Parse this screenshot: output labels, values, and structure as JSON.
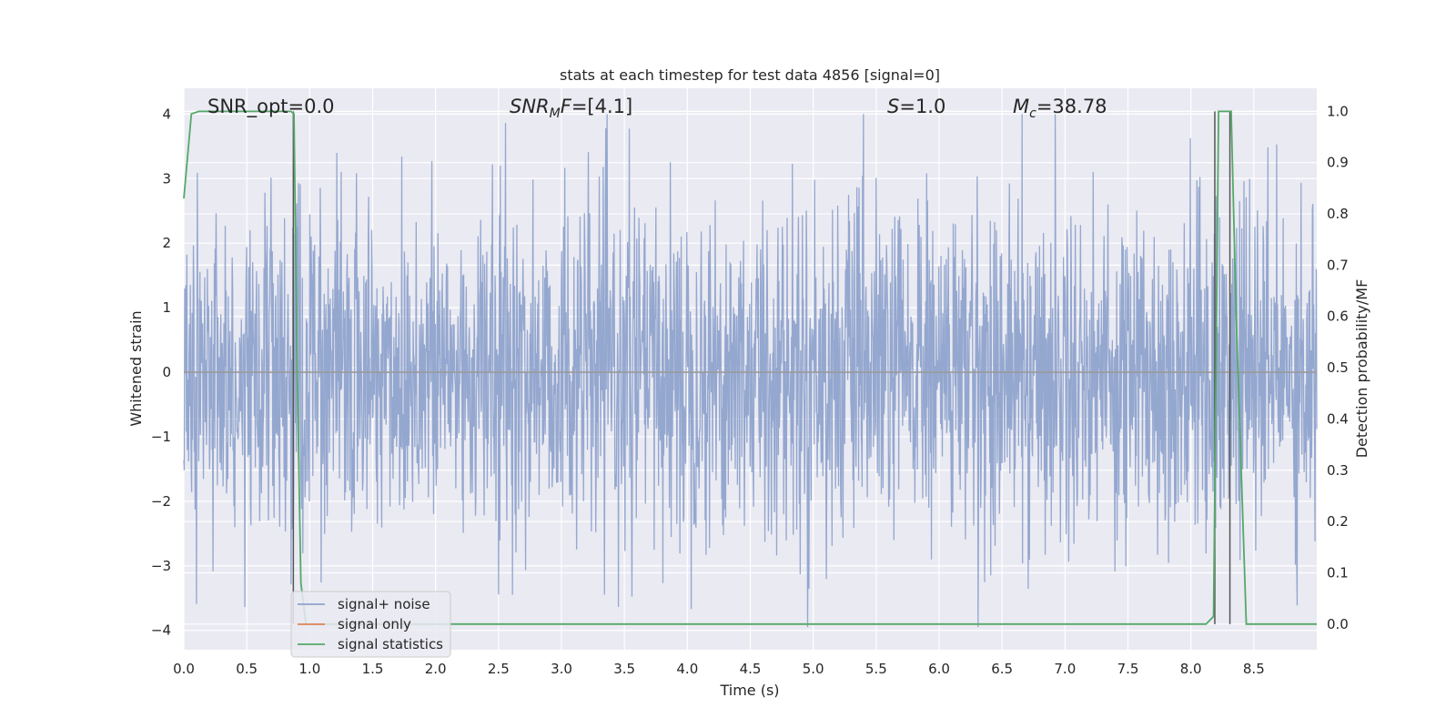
{
  "chart_data": {
    "type": "line",
    "title": "stats at each timestep for test data 4856 [signal=0]",
    "xlabel": "Time (s)",
    "ylabel": "Whitened strain",
    "ylabel_right": "Detection probability/MF",
    "xlim": [
      0.0,
      9.0
    ],
    "ylim": [
      -4.3,
      4.4
    ],
    "ylim_right": [
      -0.05,
      1.045
    ],
    "x_ticks": [
      "0.0",
      "0.5",
      "1.0",
      "1.5",
      "2.0",
      "2.5",
      "3.0",
      "3.5",
      "4.0",
      "4.5",
      "5.0",
      "5.5",
      "6.0",
      "6.5",
      "7.0",
      "7.5",
      "8.0",
      "8.5"
    ],
    "y_ticks": [
      "4",
      "3",
      "2",
      "1",
      "0",
      "−1",
      "−2",
      "−3",
      "−4"
    ],
    "y_ticks_right": [
      "1.0",
      "0.9",
      "0.8",
      "0.7",
      "0.6",
      "0.5",
      "0.4",
      "0.3",
      "0.2",
      "0.1",
      "0.0"
    ],
    "grid": true,
    "legend_position": "lower-left",
    "annotations": [
      {
        "id": "snr_opt",
        "parts": [
          {
            "t": "SNR_opt=0.0",
            "style": "normal"
          }
        ]
      },
      {
        "id": "snr_mf",
        "parts": [
          {
            "t": "SNR",
            "style": "italic"
          },
          {
            "t": "M",
            "style": "italic-sub"
          },
          {
            "t": "F",
            "style": "italic"
          },
          {
            "t": "=[4.1]",
            "style": "normal"
          }
        ]
      },
      {
        "id": "s_stat",
        "parts": [
          {
            "t": "S",
            "style": "italic"
          },
          {
            "t": "=1.0",
            "style": "normal"
          }
        ]
      },
      {
        "id": "mc",
        "parts": [
          {
            "t": "M",
            "style": "italic"
          },
          {
            "t": "c",
            "style": "italic-sub"
          },
          {
            "t": "=38.78",
            "style": "normal"
          }
        ]
      }
    ],
    "series": [
      {
        "name": "signal+ noise",
        "color": "#8fa3cc",
        "axis": "left",
        "noise_amplitude": 1.3,
        "duration": 9.0
      },
      {
        "name": "signal only",
        "color": "#dd8452",
        "axis": "left",
        "x": [
          0.0,
          9.0
        ],
        "y": [
          0.0,
          0.0
        ]
      },
      {
        "name": "signal statistics",
        "color": "#55a868",
        "axis": "right",
        "x": [
          0.0,
          0.06,
          0.12,
          0.85,
          0.875,
          0.9,
          0.93,
          0.97,
          8.12,
          8.18,
          8.22,
          8.25,
          8.32,
          8.36,
          8.44,
          8.5,
          9.0
        ],
        "y": [
          0.83,
          0.995,
          1.0,
          1.0,
          0.995,
          0.5,
          0.08,
          0.0,
          0.0,
          0.015,
          1.0,
          1.0,
          1.0,
          0.6,
          0.0,
          0.0,
          0.0
        ]
      }
    ],
    "vertical_markers": [
      {
        "x": 0.87,
        "y_from": 0.0,
        "y_to": 1.0,
        "color": "#555555"
      },
      {
        "x": 8.19,
        "y_from": 0.0,
        "y_to": 1.0,
        "color": "#555555"
      },
      {
        "x": 8.31,
        "y_from": 0.0,
        "y_to": 1.0,
        "color": "#555555"
      }
    ]
  }
}
